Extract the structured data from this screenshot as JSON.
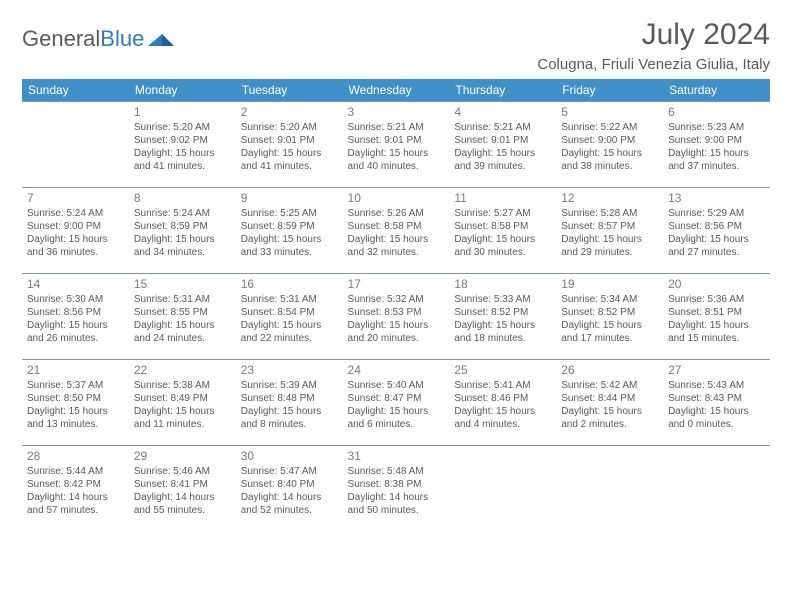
{
  "logo": {
    "word1": "General",
    "word2": "Blue"
  },
  "title": "July 2024",
  "location": "Colugna, Friuli Venezia Giulia, Italy",
  "header_bg": "#3f8fc9",
  "border_color": "#7a98b0",
  "weekdays": [
    "Sunday",
    "Monday",
    "Tuesday",
    "Wednesday",
    "Thursday",
    "Friday",
    "Saturday"
  ],
  "weeks": [
    [
      null,
      {
        "n": "1",
        "sr": "5:20 AM",
        "ss": "9:02 PM",
        "dl": "15 hours and 41 minutes."
      },
      {
        "n": "2",
        "sr": "5:20 AM",
        "ss": "9:01 PM",
        "dl": "15 hours and 41 minutes."
      },
      {
        "n": "3",
        "sr": "5:21 AM",
        "ss": "9:01 PM",
        "dl": "15 hours and 40 minutes."
      },
      {
        "n": "4",
        "sr": "5:21 AM",
        "ss": "9:01 PM",
        "dl": "15 hours and 39 minutes."
      },
      {
        "n": "5",
        "sr": "5:22 AM",
        "ss": "9:00 PM",
        "dl": "15 hours and 38 minutes."
      },
      {
        "n": "6",
        "sr": "5:23 AM",
        "ss": "9:00 PM",
        "dl": "15 hours and 37 minutes."
      }
    ],
    [
      {
        "n": "7",
        "sr": "5:24 AM",
        "ss": "9:00 PM",
        "dl": "15 hours and 36 minutes."
      },
      {
        "n": "8",
        "sr": "5:24 AM",
        "ss": "8:59 PM",
        "dl": "15 hours and 34 minutes."
      },
      {
        "n": "9",
        "sr": "5:25 AM",
        "ss": "8:59 PM",
        "dl": "15 hours and 33 minutes."
      },
      {
        "n": "10",
        "sr": "5:26 AM",
        "ss": "8:58 PM",
        "dl": "15 hours and 32 minutes."
      },
      {
        "n": "11",
        "sr": "5:27 AM",
        "ss": "8:58 PM",
        "dl": "15 hours and 30 minutes."
      },
      {
        "n": "12",
        "sr": "5:28 AM",
        "ss": "8:57 PM",
        "dl": "15 hours and 29 minutes."
      },
      {
        "n": "13",
        "sr": "5:29 AM",
        "ss": "8:56 PM",
        "dl": "15 hours and 27 minutes."
      }
    ],
    [
      {
        "n": "14",
        "sr": "5:30 AM",
        "ss": "8:56 PM",
        "dl": "15 hours and 26 minutes."
      },
      {
        "n": "15",
        "sr": "5:31 AM",
        "ss": "8:55 PM",
        "dl": "15 hours and 24 minutes."
      },
      {
        "n": "16",
        "sr": "5:31 AM",
        "ss": "8:54 PM",
        "dl": "15 hours and 22 minutes."
      },
      {
        "n": "17",
        "sr": "5:32 AM",
        "ss": "8:53 PM",
        "dl": "15 hours and 20 minutes."
      },
      {
        "n": "18",
        "sr": "5:33 AM",
        "ss": "8:52 PM",
        "dl": "15 hours and 18 minutes."
      },
      {
        "n": "19",
        "sr": "5:34 AM",
        "ss": "8:52 PM",
        "dl": "15 hours and 17 minutes."
      },
      {
        "n": "20",
        "sr": "5:36 AM",
        "ss": "8:51 PM",
        "dl": "15 hours and 15 minutes."
      }
    ],
    [
      {
        "n": "21",
        "sr": "5:37 AM",
        "ss": "8:50 PM",
        "dl": "15 hours and 13 minutes."
      },
      {
        "n": "22",
        "sr": "5:38 AM",
        "ss": "8:49 PM",
        "dl": "15 hours and 11 minutes."
      },
      {
        "n": "23",
        "sr": "5:39 AM",
        "ss": "8:48 PM",
        "dl": "15 hours and 8 minutes."
      },
      {
        "n": "24",
        "sr": "5:40 AM",
        "ss": "8:47 PM",
        "dl": "15 hours and 6 minutes."
      },
      {
        "n": "25",
        "sr": "5:41 AM",
        "ss": "8:46 PM",
        "dl": "15 hours and 4 minutes."
      },
      {
        "n": "26",
        "sr": "5:42 AM",
        "ss": "8:44 PM",
        "dl": "15 hours and 2 minutes."
      },
      {
        "n": "27",
        "sr": "5:43 AM",
        "ss": "8:43 PM",
        "dl": "15 hours and 0 minutes."
      }
    ],
    [
      {
        "n": "28",
        "sr": "5:44 AM",
        "ss": "8:42 PM",
        "dl": "14 hours and 57 minutes."
      },
      {
        "n": "29",
        "sr": "5:46 AM",
        "ss": "8:41 PM",
        "dl": "14 hours and 55 minutes."
      },
      {
        "n": "30",
        "sr": "5:47 AM",
        "ss": "8:40 PM",
        "dl": "14 hours and 52 minutes."
      },
      {
        "n": "31",
        "sr": "5:48 AM",
        "ss": "8:38 PM",
        "dl": "14 hours and 50 minutes."
      },
      null,
      null,
      null
    ]
  ],
  "labels": {
    "sunrise": "Sunrise:",
    "sunset": "Sunset:",
    "daylight": "Daylight:"
  }
}
